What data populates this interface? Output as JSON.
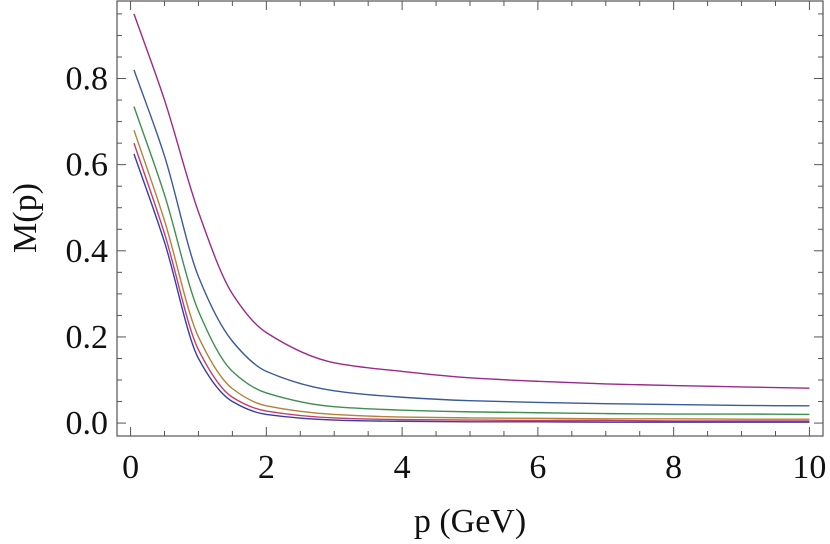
{
  "chart_data": {
    "type": "line",
    "xlabel": "p (GeV)",
    "ylabel": "M(p)",
    "xlim": [
      -0.2,
      10.2
    ],
    "ylim": [
      -0.03,
      0.98
    ],
    "x_major_ticks": [
      0,
      2,
      4,
      6,
      8,
      10
    ],
    "x_tick_labels": [
      "0",
      "2",
      "4",
      "6",
      "8",
      "10"
    ],
    "y_major_ticks": [
      0.0,
      0.2,
      0.4,
      0.6,
      0.8
    ],
    "y_tick_labels": [
      "0.0",
      "0.2",
      "0.4",
      "0.6",
      "0.8"
    ],
    "grid": false,
    "legend": "none",
    "x": [
      0.05,
      0.5,
      1.0,
      1.5,
      2.0,
      3.0,
      4.0,
      5.0,
      6.0,
      7.0,
      8.0,
      9.0,
      10.0
    ],
    "series": [
      {
        "color": "#9a2a8c",
        "values": [
          0.95,
          0.75,
          0.49,
          0.3,
          0.21,
          0.14,
          0.12,
          0.105,
          0.097,
          0.091,
          0.087,
          0.084,
          0.081
        ]
      },
      {
        "color": "#3a5a9a",
        "values": [
          0.82,
          0.62,
          0.34,
          0.19,
          0.12,
          0.075,
          0.06,
          0.052,
          0.048,
          0.045,
          0.043,
          0.041,
          0.04
        ]
      },
      {
        "color": "#3f8f4f",
        "values": [
          0.735,
          0.53,
          0.26,
          0.12,
          0.07,
          0.038,
          0.03,
          0.026,
          0.024,
          0.022,
          0.021,
          0.021,
          0.02
        ]
      },
      {
        "color": "#b0823a",
        "values": [
          0.68,
          0.47,
          0.2,
          0.08,
          0.04,
          0.02,
          0.014,
          0.012,
          0.011,
          0.01,
          0.01,
          0.009,
          0.009
        ]
      },
      {
        "color": "#c0406a",
        "values": [
          0.65,
          0.44,
          0.17,
          0.06,
          0.028,
          0.012,
          0.008,
          0.007,
          0.006,
          0.006,
          0.005,
          0.005,
          0.005
        ]
      },
      {
        "color": "#3a3aa8",
        "values": [
          0.625,
          0.42,
          0.15,
          0.05,
          0.02,
          0.007,
          0.004,
          0.003,
          0.003,
          0.002,
          0.002,
          0.002,
          0.002
        ]
      }
    ]
  }
}
